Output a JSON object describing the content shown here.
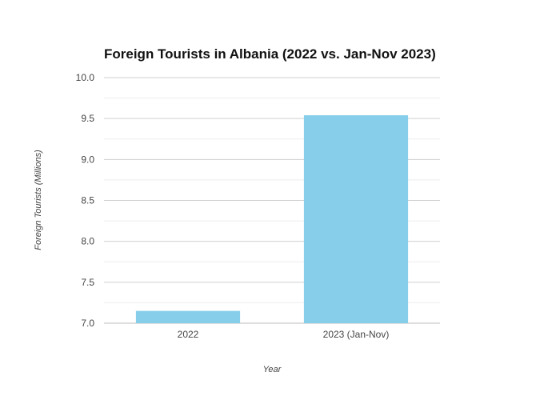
{
  "chart_data": {
    "type": "bar",
    "title": "Foreign Tourists in Albania (2022 vs. Jan-Nov 2023)",
    "xlabel": "Year",
    "ylabel": "Foreign Tourists (Millions)",
    "categories": [
      "2022",
      "2023 (Jan-Nov)"
    ],
    "values": [
      7.15,
      9.54
    ],
    "ylim": [
      7.0,
      10.0
    ],
    "yticks": [
      "7.0",
      "7.5",
      "8.0",
      "8.5",
      "9.0",
      "9.5",
      "10.0"
    ],
    "grid": true,
    "legend": "none",
    "bar_color": "#87ceeb"
  }
}
